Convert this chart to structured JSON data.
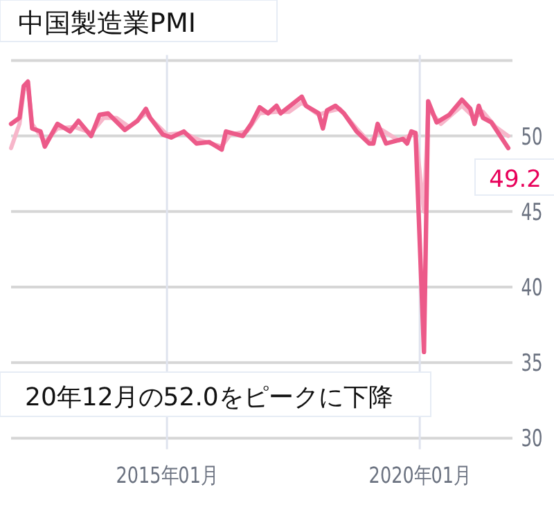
{
  "chart_data": {
    "type": "line",
    "title": "中国製造業PMI",
    "annotations": [
      "20年12月の52.0をピークに下降"
    ],
    "xlim": [
      "2011-12",
      "2021-11"
    ],
    "xticks": [
      {
        "value": "2015-01",
        "label": "2015年01月"
      },
      {
        "value": "2020-01",
        "label": "2020年01月"
      }
    ],
    "ylim": [
      30,
      55
    ],
    "yticks": [
      30,
      35,
      40,
      45,
      50,
      {
        "value": 55,
        "label": null
      }
    ],
    "grid": true,
    "marker": "none",
    "line_style": "solid",
    "series": [
      {
        "color": "#f7b6ca",
        "x": [
          "2011-12",
          "2012-02",
          "2012-03",
          "2012-04",
          "2012-05",
          "2012-08",
          "2012-11",
          "2013-03",
          "2013-07",
          "2013-10",
          "2014-01",
          "2014-04",
          "2014-08",
          "2014-10",
          "2015-01",
          "2015-05",
          "2015-09",
          "2016-02",
          "2016-04",
          "2016-08",
          "2016-11",
          "2017-03",
          "2017-06",
          "2017-09",
          "2018-01",
          "2018-03",
          "2018-06",
          "2018-10",
          "2019-01",
          "2019-04",
          "2019-08",
          "2019-12",
          "2020-02",
          "2020-03",
          "2020-06",
          "2020-11",
          "2021-02",
          "2021-04",
          "2021-07",
          "2021-10"
        ],
        "values": [
          49.2,
          50.8,
          53.0,
          53.4,
          50.8,
          49.6,
          50.5,
          50.6,
          50.2,
          51.2,
          51.2,
          50.6,
          51.5,
          50.9,
          50.1,
          50.2,
          49.7,
          49.3,
          50.1,
          50.3,
          51.5,
          51.6,
          51.6,
          52.2,
          51.4,
          51.6,
          51.8,
          50.5,
          49.6,
          50.4,
          49.7,
          50.2,
          45.0,
          51.8,
          50.8,
          52.0,
          51.2,
          51.6,
          50.6,
          50.0
        ]
      },
      {
        "color": "#ec5a89",
        "x": [
          "2011-12",
          "2012-02",
          "2012-03",
          "2012-04",
          "2012-05",
          "2012-07",
          "2012-08",
          "2012-11",
          "2013-02",
          "2013-04",
          "2013-07",
          "2013-09",
          "2013-11",
          "2014-03",
          "2014-06",
          "2014-08",
          "2014-09",
          "2014-12",
          "2015-02",
          "2015-05",
          "2015-08",
          "2015-11",
          "2016-02",
          "2016-03",
          "2016-07",
          "2016-09",
          "2016-11",
          "2017-01",
          "2017-03",
          "2017-04",
          "2017-09",
          "2017-10",
          "2018-01",
          "2018-02",
          "2018-03",
          "2018-05",
          "2018-07",
          "2018-10",
          "2019-01",
          "2019-02",
          "2019-03",
          "2019-05",
          "2019-09",
          "2019-10",
          "2019-11",
          "2019-12",
          "2020-02",
          "2020-03",
          "2020-05",
          "2020-08",
          "2020-11",
          "2021-01",
          "2021-02",
          "2021-03",
          "2021-04",
          "2021-06",
          "2021-10"
        ],
        "values": [
          50.8,
          51.2,
          53.3,
          53.6,
          50.5,
          50.3,
          49.3,
          50.8,
          50.3,
          51.0,
          50.0,
          51.4,
          51.5,
          50.4,
          51.0,
          51.8,
          51.2,
          50.1,
          49.9,
          50.3,
          49.5,
          49.6,
          49.1,
          50.3,
          50.0,
          50.8,
          51.9,
          51.5,
          52.0,
          51.5,
          52.6,
          52.0,
          51.5,
          50.5,
          51.7,
          52.0,
          51.5,
          50.3,
          49.5,
          49.5,
          50.8,
          49.5,
          49.8,
          49.5,
          50.3,
          50.2,
          35.7,
          52.3,
          50.9,
          51.4,
          52.4,
          51.8,
          50.8,
          52.0,
          51.2,
          50.9,
          49.2
        ],
        "value_labels": [
          null,
          null,
          null,
          null,
          null,
          null,
          null,
          null,
          null,
          null,
          null,
          null,
          null,
          null,
          null,
          null,
          null,
          null,
          null,
          null,
          null,
          null,
          null,
          null,
          null,
          null,
          null,
          null,
          null,
          null,
          null,
          null,
          null,
          null,
          null,
          null,
          null,
          null,
          null,
          null,
          null,
          null,
          null,
          null,
          null,
          null,
          null,
          null,
          null,
          null,
          null,
          null,
          null,
          null,
          null,
          null,
          "49.2"
        ]
      }
    ]
  }
}
